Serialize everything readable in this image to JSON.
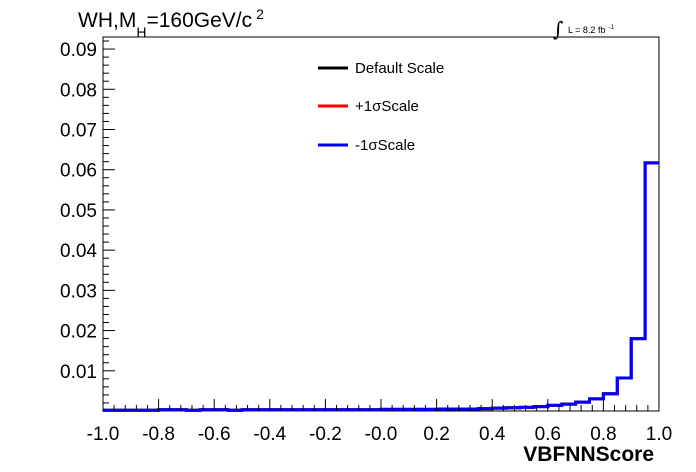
{
  "chart_data": {
    "type": "line",
    "title_parts": {
      "main": "WH,M",
      "sub": "H",
      "rest": "=160GeV/c",
      "sup": "2"
    },
    "lumi": {
      "integral": "∫",
      "text": "L = 8.2 fb",
      "sup": "-1"
    },
    "xlabel": "VBFNNScore",
    "ylabel": "",
    "xlim": [
      -1.0,
      1.0
    ],
    "ylim": [
      0,
      0.093
    ],
    "x_ticks": [
      "-1.0",
      "-0.8",
      "-0.6",
      "-0.4",
      "-0.2",
      "-0.0",
      "0.2",
      "0.4",
      "0.6",
      "0.8",
      "1.0"
    ],
    "y_ticks": [
      "0.01",
      "0.02",
      "0.03",
      "0.04",
      "0.05",
      "0.06",
      "0.07",
      "0.08",
      "0.09"
    ],
    "bin_edges": [
      -1.0,
      -0.95,
      -0.9,
      -0.85,
      -0.8,
      -0.75,
      -0.7,
      -0.65,
      -0.6,
      -0.55,
      -0.5,
      -0.45,
      -0.4,
      -0.35,
      -0.3,
      -0.25,
      -0.2,
      -0.15,
      -0.1,
      -0.05,
      0.0,
      0.05,
      0.1,
      0.15,
      0.2,
      0.25,
      0.3,
      0.35,
      0.4,
      0.45,
      0.5,
      0.55,
      0.6,
      0.65,
      0.7,
      0.75,
      0.8,
      0.85,
      0.9,
      0.95,
      1.0
    ],
    "series": [
      {
        "name": "Default Scale",
        "color": "#000000",
        "values": [
          0.0002,
          0.0002,
          0.0002,
          0.0002,
          0.0003,
          0.0003,
          0.0002,
          0.0003,
          0.0003,
          0.0002,
          0.0003,
          0.0003,
          0.0003,
          0.0003,
          0.0003,
          0.0003,
          0.0003,
          0.0003,
          0.0003,
          0.0003,
          0.0004,
          0.0004,
          0.0004,
          0.0004,
          0.0005,
          0.0005,
          0.0005,
          0.0006,
          0.0007,
          0.0008,
          0.0009,
          0.0011,
          0.0014,
          0.0017,
          0.0022,
          0.003,
          0.0043,
          0.0082,
          0.018,
          0.0617
        ]
      },
      {
        "name": "+1σScale",
        "color": "#ff0000",
        "values": [
          0.0002,
          0.0002,
          0.0002,
          0.0002,
          0.0003,
          0.0003,
          0.0002,
          0.0003,
          0.0003,
          0.0002,
          0.0003,
          0.0003,
          0.0003,
          0.0003,
          0.0003,
          0.0003,
          0.0003,
          0.0003,
          0.0003,
          0.0003,
          0.0004,
          0.0004,
          0.0004,
          0.0004,
          0.0005,
          0.0005,
          0.0005,
          0.0006,
          0.0007,
          0.0008,
          0.0009,
          0.0011,
          0.0014,
          0.0017,
          0.0022,
          0.003,
          0.0043,
          0.0082,
          0.018,
          0.0617
        ]
      },
      {
        "name": "-1σScale",
        "color": "#0000ff",
        "values": [
          0.0002,
          0.0002,
          0.0002,
          0.0002,
          0.0003,
          0.0003,
          0.0002,
          0.0003,
          0.0003,
          0.0002,
          0.0003,
          0.0003,
          0.0003,
          0.0003,
          0.0003,
          0.0003,
          0.0003,
          0.0003,
          0.0003,
          0.0003,
          0.0004,
          0.0004,
          0.0004,
          0.0004,
          0.0005,
          0.0005,
          0.0005,
          0.0006,
          0.0007,
          0.0008,
          0.0009,
          0.0011,
          0.0014,
          0.0017,
          0.0022,
          0.003,
          0.0043,
          0.0082,
          0.018,
          0.0617
        ]
      }
    ],
    "legend_position": "top-center",
    "grid": false
  }
}
